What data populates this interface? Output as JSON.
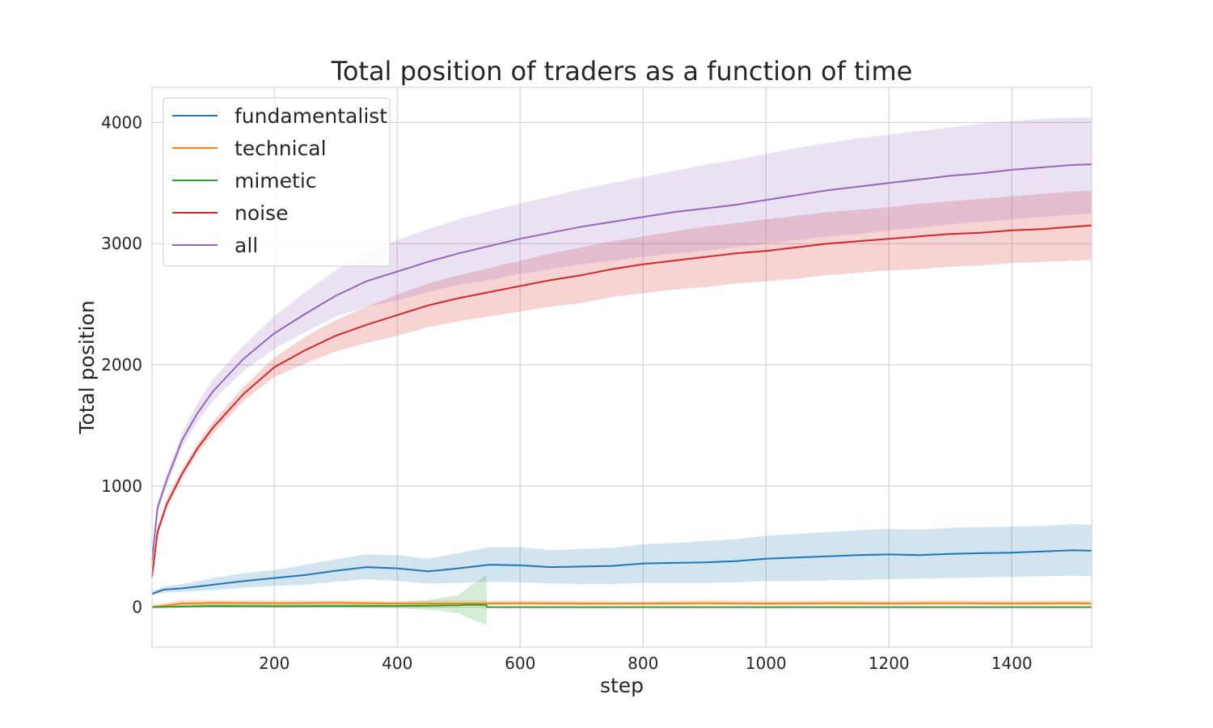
{
  "chart_data": {
    "type": "line",
    "title": "Total position of traders as a function of time",
    "xlabel": "step",
    "ylabel": "Total position",
    "xlim": [
      1,
      1530
    ],
    "ylim": [
      -330,
      4290
    ],
    "xticks": [
      200,
      400,
      600,
      800,
      1000,
      1200,
      1400
    ],
    "yticks": [
      0,
      1000,
      2000,
      3000,
      4000
    ],
    "grid": true,
    "legend_position": "top-left",
    "series": [
      {
        "name": "fundamentalist",
        "color": "#1f77b4",
        "x": [
          1,
          20,
          50,
          100,
          150,
          200,
          250,
          300,
          350,
          400,
          450,
          500,
          550,
          600,
          650,
          700,
          750,
          800,
          850,
          900,
          950,
          1000,
          1050,
          1100,
          1150,
          1200,
          1250,
          1300,
          1350,
          1400,
          1450,
          1500,
          1530
        ],
        "y": [
          110,
          145,
          155,
          185,
          215,
          240,
          265,
          300,
          330,
          320,
          295,
          320,
          350,
          345,
          330,
          335,
          340,
          360,
          365,
          370,
          380,
          400,
          410,
          420,
          430,
          435,
          430,
          440,
          445,
          450,
          460,
          470,
          465
        ],
        "lower": [
          95,
          120,
          125,
          140,
          160,
          175,
          185,
          210,
          230,
          215,
          195,
          200,
          210,
          205,
          195,
          190,
          190,
          200,
          200,
          200,
          205,
          215,
          215,
          220,
          225,
          230,
          235,
          240,
          245,
          250,
          255,
          260,
          255
        ],
        "upper": [
          130,
          170,
          190,
          240,
          280,
          305,
          350,
          395,
          435,
          430,
          400,
          445,
          495,
          495,
          470,
          480,
          490,
          520,
          530,
          545,
          560,
          590,
          605,
          620,
          635,
          645,
          640,
          655,
          660,
          665,
          670,
          685,
          680
        ]
      },
      {
        "name": "technical",
        "color": "#ff7f0e",
        "x": [
          1,
          50,
          100,
          200,
          300,
          400,
          500,
          600,
          700,
          800,
          900,
          1000,
          1100,
          1200,
          1300,
          1400,
          1500,
          1530
        ],
        "y": [
          0,
          30,
          35,
          32,
          35,
          30,
          30,
          32,
          30,
          30,
          32,
          30,
          32,
          30,
          33,
          30,
          32,
          30
        ],
        "lower": [
          -10,
          10,
          15,
          15,
          15,
          15,
          10,
          15,
          15,
          15,
          15,
          15,
          15,
          15,
          15,
          15,
          15,
          15
        ],
        "upper": [
          20,
          60,
          60,
          55,
          55,
          50,
          55,
          55,
          55,
          50,
          60,
          55,
          55,
          55,
          60,
          55,
          55,
          55
        ]
      },
      {
        "name": "mimetic",
        "color": "#2ca02c",
        "x": [
          1,
          100,
          200,
          300,
          400,
          450,
          500,
          520,
          545,
          546,
          600,
          800,
          1000,
          1200,
          1400,
          1530
        ],
        "y": [
          0,
          10,
          8,
          10,
          10,
          12,
          15,
          20,
          18,
          0,
          0,
          0,
          0,
          0,
          0,
          0
        ],
        "lower": [
          -5,
          -5,
          -5,
          -5,
          -10,
          -20,
          -50,
          -100,
          -150,
          0,
          0,
          0,
          0,
          0,
          0,
          0
        ],
        "upper": [
          15,
          30,
          25,
          25,
          40,
          60,
          100,
          180,
          260,
          0,
          0,
          0,
          0,
          0,
          0,
          0
        ]
      },
      {
        "name": "noise",
        "color": "#d62728",
        "x": [
          1,
          10,
          25,
          50,
          75,
          100,
          150,
          200,
          250,
          300,
          350,
          400,
          450,
          500,
          550,
          600,
          650,
          700,
          750,
          800,
          850,
          900,
          950,
          1000,
          1050,
          1100,
          1150,
          1200,
          1250,
          1300,
          1350,
          1400,
          1450,
          1500,
          1530
        ],
        "y": [
          250,
          620,
          850,
          1100,
          1310,
          1480,
          1760,
          1980,
          2120,
          2240,
          2330,
          2410,
          2490,
          2550,
          2600,
          2650,
          2700,
          2740,
          2790,
          2830,
          2860,
          2890,
          2920,
          2940,
          2970,
          3000,
          3020,
          3040,
          3060,
          3080,
          3090,
          3110,
          3120,
          3140,
          3150
        ],
        "lower": [
          230,
          580,
          810,
          1060,
          1270,
          1430,
          1700,
          1900,
          2010,
          2110,
          2180,
          2240,
          2310,
          2360,
          2400,
          2440,
          2480,
          2510,
          2560,
          2590,
          2620,
          2640,
          2670,
          2690,
          2710,
          2740,
          2760,
          2780,
          2790,
          2810,
          2820,
          2840,
          2850,
          2860,
          2865
        ],
        "upper": [
          270,
          660,
          890,
          1140,
          1350,
          1530,
          1820,
          2060,
          2230,
          2370,
          2480,
          2580,
          2670,
          2740,
          2800,
          2860,
          2920,
          2970,
          3020,
          3060,
          3100,
          3140,
          3170,
          3200,
          3230,
          3260,
          3280,
          3300,
          3330,
          3350,
          3370,
          3390,
          3410,
          3430,
          3435
        ]
      },
      {
        "name": "all",
        "color": "#9467bd",
        "x": [
          1,
          10,
          25,
          50,
          75,
          100,
          150,
          200,
          250,
          300,
          350,
          400,
          450,
          500,
          550,
          600,
          650,
          700,
          750,
          800,
          850,
          900,
          950,
          1000,
          1050,
          1100,
          1150,
          1200,
          1250,
          1300,
          1350,
          1400,
          1450,
          1500,
          1530
        ],
        "y": [
          380,
          820,
          1050,
          1380,
          1600,
          1780,
          2050,
          2260,
          2420,
          2570,
          2690,
          2770,
          2850,
          2920,
          2980,
          3040,
          3090,
          3140,
          3180,
          3220,
          3260,
          3290,
          3320,
          3360,
          3400,
          3440,
          3470,
          3500,
          3530,
          3560,
          3580,
          3610,
          3630,
          3650,
          3655
        ],
        "lower": [
          360,
          780,
          1000,
          1320,
          1530,
          1700,
          1950,
          2130,
          2270,
          2400,
          2480,
          2530,
          2600,
          2660,
          2700,
          2750,
          2790,
          2830,
          2860,
          2890,
          2920,
          2940,
          2970,
          3000,
          3030,
          3060,
          3080,
          3110,
          3130,
          3160,
          3180,
          3200,
          3220,
          3240,
          3245
        ],
        "upper": [
          400,
          860,
          1100,
          1440,
          1680,
          1880,
          2160,
          2400,
          2600,
          2780,
          2920,
          3030,
          3120,
          3200,
          3270,
          3330,
          3390,
          3450,
          3500,
          3550,
          3600,
          3650,
          3690,
          3740,
          3790,
          3830,
          3870,
          3900,
          3930,
          3960,
          3990,
          4010,
          4030,
          4040,
          4040
        ]
      }
    ]
  }
}
